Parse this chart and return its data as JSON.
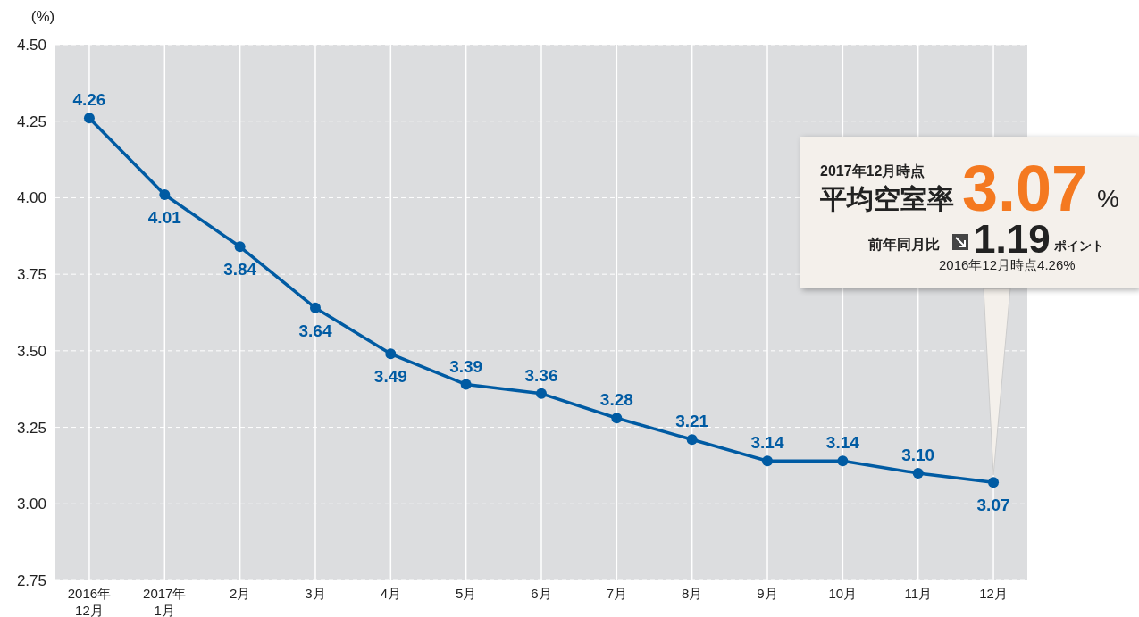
{
  "chart_data": {
    "type": "line",
    "ylabel": "(%)",
    "categories": [
      "2016年\n12月",
      "2017年\n1月",
      "2月",
      "3月",
      "4月",
      "5月",
      "6月",
      "7月",
      "8月",
      "9月",
      "10月",
      "11月",
      "12月"
    ],
    "series": [
      {
        "color": "#005ba3",
        "values": [
          4.26,
          4.01,
          3.84,
          3.64,
          3.49,
          3.39,
          3.36,
          3.28,
          3.21,
          3.14,
          3.14,
          3.1,
          3.07
        ]
      }
    ],
    "value_labels": [
      "4.26",
      "4.01",
      "3.84",
      "3.64",
      "3.49",
      "3.39",
      "3.36",
      "3.28",
      "3.21",
      "3.14",
      "3.14",
      "3.10",
      "3.07"
    ],
    "ylim": [
      2.75,
      4.5
    ],
    "yticks": [
      {
        "value": 2.75,
        "label": "2.75"
      },
      {
        "value": 3,
        "label": "3.00"
      },
      {
        "value": 3.25,
        "label": "3.25"
      },
      {
        "value": 3.5,
        "label": "3.50"
      },
      {
        "value": 3.75,
        "label": "3.75"
      },
      {
        "value": 4,
        "label": "4.00"
      },
      {
        "value": 4.25,
        "label": "4.25"
      },
      {
        "value": 4.5,
        "label": "4.50"
      }
    ],
    "grid": true,
    "marker": "circle",
    "line_style": "solid",
    "annotations": [
      "2017年12月時点",
      "平均空室率",
      "3.07",
      "%",
      "前年同月比",
      "1.19",
      "ポイント",
      "2016年12月時点4.26%"
    ]
  }
}
